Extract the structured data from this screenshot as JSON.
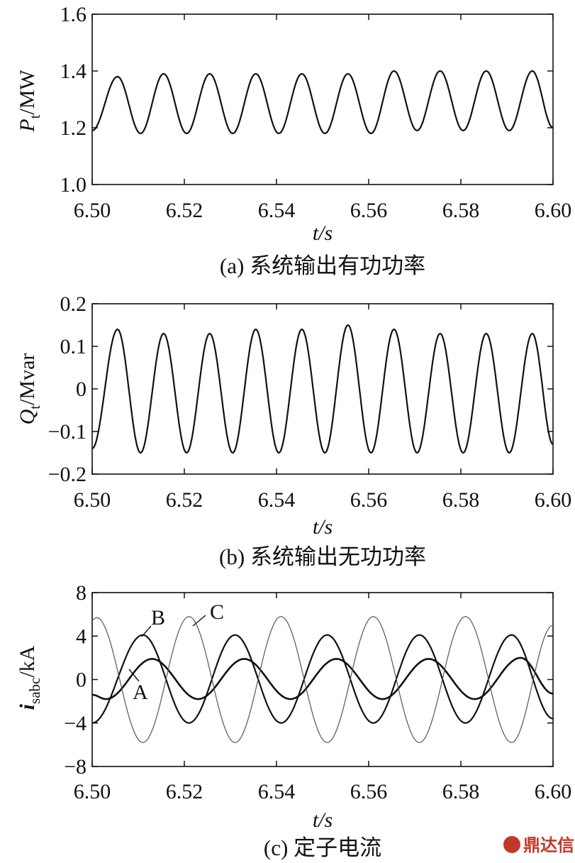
{
  "watermark": "鼎达信",
  "chart_data": [
    {
      "type": "line",
      "caption": "(a) 系统输出有功功率",
      "xlabel": "t/s",
      "ylabel": "P_t/MW",
      "ylabel_main": "P",
      "ylabel_sub": "t",
      "ylabel_unit": "/MW",
      "xlim": [
        6.5,
        6.6
      ],
      "ylim": [
        1.0,
        1.6
      ],
      "xticks": [
        "6.50",
        "6.52",
        "6.54",
        "6.56",
        "6.58",
        "6.60"
      ],
      "yticks": [
        "1.6",
        "1.4",
        "1.2",
        "1.0"
      ],
      "xtick_values": [
        6.5,
        6.52,
        6.54,
        6.56,
        6.58,
        6.6
      ],
      "ytick_values": [
        1.6,
        1.4,
        1.2,
        1.0
      ],
      "series": [
        {
          "x": [
            6.5,
            6.5055,
            6.5105,
            6.5155,
            6.5205,
            6.5255,
            6.5305,
            6.5355,
            6.5405,
            6.5455,
            6.5505,
            6.5555,
            6.5605,
            6.5655,
            6.5705,
            6.5755,
            6.5805,
            6.5855,
            6.5905,
            6.5955,
            6.6
          ],
          "y": [
            1.19,
            1.38,
            1.18,
            1.39,
            1.18,
            1.39,
            1.18,
            1.39,
            1.18,
            1.39,
            1.18,
            1.39,
            1.18,
            1.4,
            1.19,
            1.4,
            1.19,
            1.4,
            1.19,
            1.4,
            1.2
          ],
          "color": "#111111"
        }
      ]
    },
    {
      "type": "line",
      "caption": "(b) 系统输出无功功率",
      "xlabel": "t/s",
      "ylabel": "Q_t/Mvar",
      "ylabel_main": "Q",
      "ylabel_sub": "t",
      "ylabel_unit": "/Mvar",
      "xlim": [
        6.5,
        6.6
      ],
      "ylim": [
        -0.2,
        0.2
      ],
      "xticks": [
        "6.50",
        "6.52",
        "6.54",
        "6.56",
        "6.58",
        "6.60"
      ],
      "yticks": [
        "0.2",
        "0.1",
        "0",
        "−0.1",
        "−0.2"
      ],
      "xtick_values": [
        6.5,
        6.52,
        6.54,
        6.56,
        6.58,
        6.6
      ],
      "ytick_values": [
        0.2,
        0.1,
        0,
        -0.1,
        -0.2
      ],
      "series": [
        {
          "x": [
            6.5,
            6.5055,
            6.5105,
            6.5155,
            6.5205,
            6.5255,
            6.5305,
            6.5355,
            6.5405,
            6.5455,
            6.5505,
            6.5555,
            6.5605,
            6.5655,
            6.5705,
            6.5755,
            6.5805,
            6.5855,
            6.5905,
            6.5955,
            6.6
          ],
          "y": [
            -0.14,
            0.14,
            -0.15,
            0.13,
            -0.15,
            0.13,
            -0.15,
            0.14,
            -0.15,
            0.14,
            -0.15,
            0.15,
            -0.15,
            0.14,
            -0.15,
            0.13,
            -0.15,
            0.13,
            -0.15,
            0.13,
            -0.13
          ],
          "color": "#111111"
        }
      ]
    },
    {
      "type": "line",
      "caption": "(c) 定子电流",
      "xlabel": "t/s",
      "ylabel": "i_sabc/kA",
      "ylabel_main": "i",
      "ylabel_sub": "sabc",
      "ylabel_unit": "/kA",
      "xlim": [
        6.5,
        6.6
      ],
      "ylim": [
        -8,
        8
      ],
      "xticks": [
        "6.50",
        "6.52",
        "6.54",
        "6.56",
        "6.58",
        "6.60"
      ],
      "yticks": [
        "8",
        "4",
        "0",
        "−4",
        "−8"
      ],
      "xtick_values": [
        6.5,
        6.52,
        6.54,
        6.56,
        6.58,
        6.6
      ],
      "ytick_values": [
        8,
        4,
        0,
        -4,
        -8
      ],
      "series": [
        {
          "name": "A",
          "x": [
            6.5,
            6.503,
            6.513,
            6.523,
            6.533,
            6.543,
            6.553,
            6.563,
            6.573,
            6.583,
            6.593,
            6.6
          ],
          "y": [
            -1.4,
            -1.8,
            1.9,
            -1.8,
            1.9,
            -1.8,
            1.9,
            -1.8,
            1.9,
            -1.8,
            2.0,
            -1.3
          ],
          "color": "#111111"
        },
        {
          "name": "B",
          "x": [
            6.5,
            6.511,
            6.521,
            6.531,
            6.541,
            6.551,
            6.561,
            6.571,
            6.581,
            6.591,
            6.6
          ],
          "y": [
            -4.0,
            4.1,
            -4.0,
            4.1,
            -4.0,
            4.1,
            -4.0,
            4.1,
            -4.0,
            4.1,
            -3.6
          ],
          "color": "#111111"
        },
        {
          "name": "C",
          "x": [
            6.5,
            6.501,
            6.511,
            6.521,
            6.531,
            6.541,
            6.551,
            6.561,
            6.571,
            6.581,
            6.591,
            6.6
          ],
          "y": [
            5.5,
            5.7,
            -5.8,
            5.8,
            -5.8,
            5.8,
            -5.8,
            5.8,
            -5.8,
            5.8,
            -5.8,
            5.0
          ],
          "color": "#555555"
        }
      ],
      "annotations": [
        "A",
        "B",
        "C"
      ]
    }
  ]
}
